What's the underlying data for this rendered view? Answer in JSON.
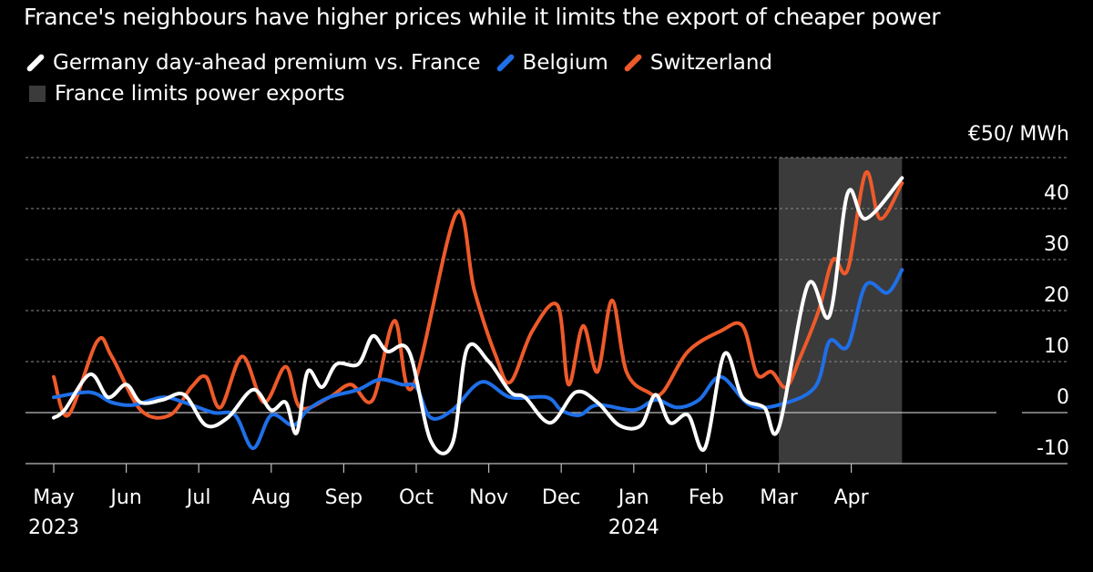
{
  "chart_data": {
    "type": "line",
    "title": "France's neighbours have higher prices while it limits the export of cheaper power",
    "unit_label": "€50/ MWh",
    "ylim": [
      -10,
      50
    ],
    "xlim": [
      0,
      12
    ],
    "y_ticks": [
      -10,
      0,
      10,
      20,
      30,
      40
    ],
    "y_tick_labels": [
      "-10",
      "0",
      "10",
      "20",
      "30",
      "40"
    ],
    "x_ticks": [
      {
        "t": 0,
        "label": "May",
        "year": "2023"
      },
      {
        "t": 1,
        "label": "Jun",
        "year": ""
      },
      {
        "t": 2,
        "label": "Jul",
        "year": ""
      },
      {
        "t": 3,
        "label": "Aug",
        "year": ""
      },
      {
        "t": 4,
        "label": "Sep",
        "year": ""
      },
      {
        "t": 5,
        "label": "Oct",
        "year": ""
      },
      {
        "t": 6,
        "label": "Nov",
        "year": ""
      },
      {
        "t": 7,
        "label": "Dec",
        "year": ""
      },
      {
        "t": 8,
        "label": "Jan",
        "year": "2024"
      },
      {
        "t": 9,
        "label": "Feb",
        "year": ""
      },
      {
        "t": 10,
        "label": "Mar",
        "year": ""
      },
      {
        "t": 11,
        "label": "Apr",
        "year": ""
      }
    ],
    "shaded_region": {
      "label": "France limits power exports",
      "from": 10,
      "to": 11.7,
      "color": "#3b3b3b"
    },
    "legend": {
      "placement": "top-left"
    },
    "series": [
      {
        "name": "Germany day-ahead premium vs. France",
        "color": "#ffffff",
        "points": [
          [
            0,
            -1
          ],
          [
            0.15,
            0.5
          ],
          [
            0.5,
            7.5
          ],
          [
            0.75,
            3
          ],
          [
            1,
            5.5
          ],
          [
            1.2,
            2
          ],
          [
            1.5,
            2.5
          ],
          [
            1.8,
            3.5
          ],
          [
            2.1,
            -2.5
          ],
          [
            2.4,
            -1
          ],
          [
            2.75,
            4.5
          ],
          [
            3,
            0.5
          ],
          [
            3.2,
            2
          ],
          [
            3.35,
            -4
          ],
          [
            3.5,
            8
          ],
          [
            3.7,
            5
          ],
          [
            3.9,
            9.5
          ],
          [
            4.2,
            9.5
          ],
          [
            4.4,
            15
          ],
          [
            4.6,
            12
          ],
          [
            4.9,
            12
          ],
          [
            5.2,
            -5.5
          ],
          [
            5.5,
            -6
          ],
          [
            5.7,
            12.5
          ],
          [
            6,
            10
          ],
          [
            6.3,
            4
          ],
          [
            6.5,
            3
          ],
          [
            6.85,
            -2
          ],
          [
            7.2,
            4
          ],
          [
            7.5,
            2
          ],
          [
            7.8,
            -2.5
          ],
          [
            8.1,
            -2.5
          ],
          [
            8.3,
            3.5
          ],
          [
            8.5,
            -2
          ],
          [
            8.75,
            -0.5
          ],
          [
            8.98,
            -7
          ],
          [
            9.25,
            11.5
          ],
          [
            9.5,
            3
          ],
          [
            9.8,
            1
          ],
          [
            10,
            -3
          ],
          [
            10.4,
            25
          ],
          [
            10.7,
            19
          ],
          [
            10.95,
            43
          ],
          [
            11.2,
            38
          ],
          [
            11.7,
            46
          ]
        ]
      },
      {
        "name": "Belgium",
        "color": "#1f6fe8",
        "points": [
          [
            0,
            3
          ],
          [
            0.5,
            4
          ],
          [
            0.8,
            2
          ],
          [
            1.1,
            1.5
          ],
          [
            1.5,
            3
          ],
          [
            1.8,
            2
          ],
          [
            2.2,
            0
          ],
          [
            2.5,
            -0.5
          ],
          [
            2.75,
            -7
          ],
          [
            3,
            -0.5
          ],
          [
            3.3,
            -2.5
          ],
          [
            3.5,
            0.5
          ],
          [
            3.8,
            3
          ],
          [
            4.2,
            4.5
          ],
          [
            4.5,
            6.5
          ],
          [
            4.8,
            5.5
          ],
          [
            5,
            5
          ],
          [
            5.2,
            -1
          ],
          [
            5.5,
            0.5
          ],
          [
            5.9,
            6
          ],
          [
            6.3,
            3
          ],
          [
            6.8,
            3
          ],
          [
            7,
            0.5
          ],
          [
            7.25,
            -0.5
          ],
          [
            7.5,
            1.5
          ],
          [
            8,
            0.5
          ],
          [
            8.3,
            2.5
          ],
          [
            8.6,
            1
          ],
          [
            8.9,
            2.5
          ],
          [
            9.2,
            7
          ],
          [
            9.6,
            1.5
          ],
          [
            10,
            1.5
          ],
          [
            10.5,
            5
          ],
          [
            10.7,
            14
          ],
          [
            10.95,
            13
          ],
          [
            11.2,
            25
          ],
          [
            11.5,
            23.5
          ],
          [
            11.7,
            28
          ]
        ]
      },
      {
        "name": "Switzerland",
        "color": "#ee5a2a",
        "points": [
          [
            0,
            7
          ],
          [
            0.2,
            -0.5
          ],
          [
            0.6,
            14
          ],
          [
            0.8,
            11
          ],
          [
            1.2,
            0.5
          ],
          [
            1.6,
            -0.5
          ],
          [
            1.9,
            5
          ],
          [
            2.1,
            7
          ],
          [
            2.3,
            1
          ],
          [
            2.6,
            11
          ],
          [
            2.9,
            2
          ],
          [
            3.2,
            9
          ],
          [
            3.4,
            1
          ],
          [
            3.8,
            3
          ],
          [
            4.1,
            5.5
          ],
          [
            4.4,
            2.5
          ],
          [
            4.7,
            18
          ],
          [
            4.95,
            5
          ],
          [
            5.55,
            39
          ],
          [
            5.8,
            24
          ],
          [
            6.1,
            11
          ],
          [
            6.3,
            6
          ],
          [
            6.6,
            16
          ],
          [
            6.95,
            21
          ],
          [
            7.1,
            5.5
          ],
          [
            7.3,
            17
          ],
          [
            7.5,
            8
          ],
          [
            7.7,
            22
          ],
          [
            7.9,
            8
          ],
          [
            8.2,
            4
          ],
          [
            8.4,
            4
          ],
          [
            8.75,
            12
          ],
          [
            9.2,
            16
          ],
          [
            9.5,
            17
          ],
          [
            9.7,
            7.5
          ],
          [
            9.9,
            8
          ],
          [
            10.1,
            5
          ],
          [
            10.3,
            11
          ],
          [
            10.55,
            20
          ],
          [
            10.75,
            30
          ],
          [
            10.95,
            28
          ],
          [
            11.2,
            47
          ],
          [
            11.4,
            38
          ],
          [
            11.7,
            45
          ]
        ]
      }
    ]
  }
}
